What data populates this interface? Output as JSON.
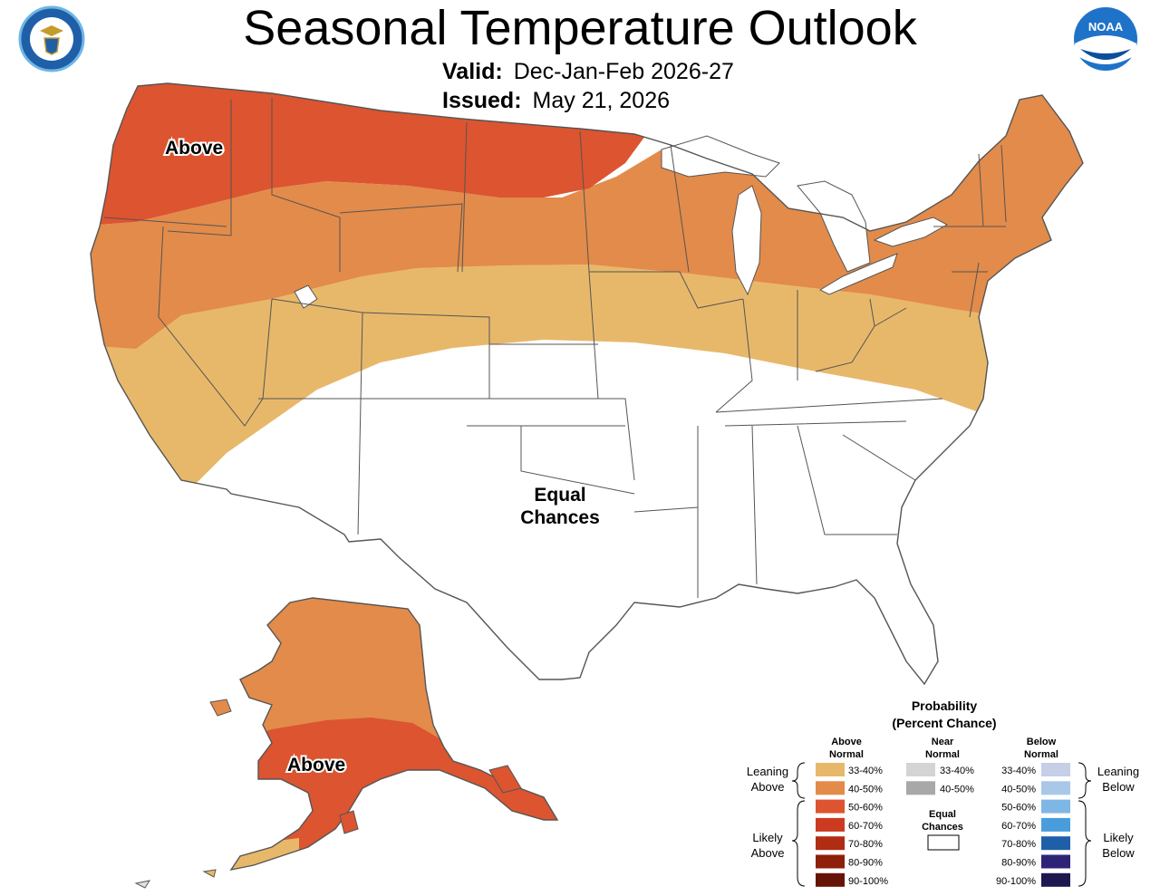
{
  "title": "Seasonal Temperature Outlook",
  "valid": {
    "label": "Valid:",
    "value": "Dec-Jan-Feb 2026-27"
  },
  "issued": {
    "label": "Issued:",
    "value": "May 21, 2026"
  },
  "logos": {
    "left": {
      "name": "department-of-commerce-seal",
      "text": "DEPARTMENT OF COMMERCE · UNITED STATES OF AMERICA"
    },
    "right": {
      "name": "noaa-logo",
      "text": "NOAA"
    }
  },
  "map_labels": {
    "conus_above": "Above",
    "equal_line1": "Equal",
    "equal_line2": "Chances",
    "alaska_above": "Above"
  },
  "colors": {
    "above_33_40": "#E8B86A",
    "above_40_50": "#E38B4A",
    "above_50_60": "#DC5430",
    "above_60_70": "#CC3A20",
    "above_70_80": "#B02C12",
    "above_80_90": "#8E1F0A",
    "above_90_100": "#661405",
    "near_33_40": "#D4D4D4",
    "near_40_50": "#A8A8A8",
    "below_33_40": "#C5CFE6",
    "below_40_50": "#A9C8E8",
    "below_50_60": "#7EB7E6",
    "below_60_70": "#4A9DDB",
    "below_70_80": "#1F5FA8",
    "below_80_90": "#2E2477",
    "below_90_100": "#1E1850",
    "boundary": "#555555"
  },
  "legend": {
    "title_line1": "Probability",
    "title_line2": "(Percent Chance)",
    "above_header_line1": "Above",
    "above_header_line2": "Normal",
    "near_header_line1": "Near",
    "near_header_line2": "Normal",
    "below_header_line1": "Below",
    "below_header_line2": "Normal",
    "leaning_above_line1": "Leaning",
    "leaning_above_line2": "Above",
    "likely_above_line1": "Likely",
    "likely_above_line2": "Above",
    "leaning_below_line1": "Leaning",
    "leaning_below_line2": "Below",
    "likely_below_line1": "Likely",
    "likely_below_line2": "Below",
    "equal_line1": "Equal",
    "equal_line2": "Chances",
    "above_items": [
      "33-40%",
      "40-50%",
      "50-60%",
      "60-70%",
      "70-80%",
      "80-90%",
      "90-100%"
    ],
    "near_items": [
      "33-40%",
      "40-50%"
    ],
    "below_items": [
      "33-40%",
      "40-50%",
      "50-60%",
      "60-70%",
      "70-80%",
      "80-90%",
      "90-100%"
    ]
  }
}
